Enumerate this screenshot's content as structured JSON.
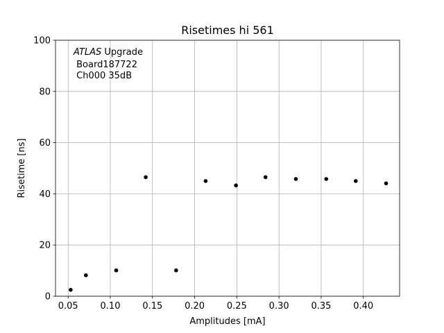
{
  "chart_data": {
    "type": "scatter",
    "title": "Risetimes hi 561",
    "xlabel": "Amplitudes [mA]",
    "ylabel": "Risetime [ns]",
    "xlim": [
      0.035,
      0.443
    ],
    "ylim": [
      0,
      100
    ],
    "xticks": [
      0.05,
      0.1,
      0.15,
      0.2,
      0.25,
      0.3,
      0.35,
      0.4
    ],
    "xtick_labels": [
      "0.05",
      "0.10",
      "0.15",
      "0.20",
      "0.25",
      "0.30",
      "0.35",
      "0.40"
    ],
    "yticks": [
      0,
      20,
      40,
      60,
      80,
      100
    ],
    "ytick_labels": [
      "0",
      "20",
      "40",
      "60",
      "80",
      "100"
    ],
    "grid": true,
    "marker_color": "#000000",
    "annotation": {
      "line1_italic": "ATLAS",
      "line1_rest": " Upgrade",
      "line2": " Board187722",
      "line3": " Ch000 35dB"
    },
    "points": [
      {
        "x": 0.053,
        "y": 2.5
      },
      {
        "x": 0.071,
        "y": 8.2
      },
      {
        "x": 0.107,
        "y": 10.1
      },
      {
        "x": 0.142,
        "y": 46.5
      },
      {
        "x": 0.178,
        "y": 10.1
      },
      {
        "x": 0.213,
        "y": 45.0
      },
      {
        "x": 0.249,
        "y": 43.3
      },
      {
        "x": 0.284,
        "y": 46.5
      },
      {
        "x": 0.32,
        "y": 45.8
      },
      {
        "x": 0.356,
        "y": 45.8
      },
      {
        "x": 0.391,
        "y": 45.0
      },
      {
        "x": 0.427,
        "y": 44.1
      }
    ]
  }
}
